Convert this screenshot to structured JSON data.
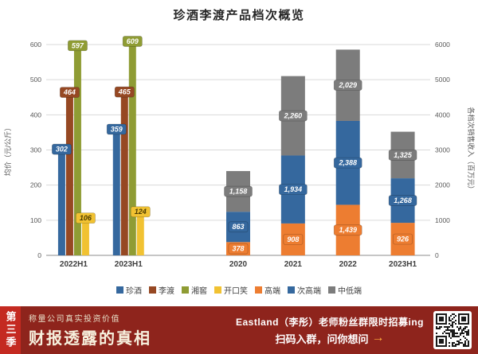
{
  "title": "珍酒李渡产品档次概览",
  "chart_data": {
    "type": "bar",
    "title": "珍酒李渡产品档次概览",
    "left_axis": {
      "label": "均价（元/公斤）",
      "min": 0,
      "max": 600,
      "ticks": [
        0,
        100,
        200,
        300,
        400,
        500,
        600
      ]
    },
    "right_axis": {
      "label": "各档次销售收入（百万元）",
      "min": 0,
      "max": 6000,
      "ticks": [
        0,
        1000,
        2000,
        3000,
        4000,
        5000,
        6000
      ]
    },
    "price_chart": {
      "categories": [
        "2022H1",
        "2023H1"
      ],
      "series": [
        {
          "name": "珍酒",
          "color": "#35689E",
          "label_text": "#FFFFFF",
          "values": [
            302,
            359
          ]
        },
        {
          "name": "李渡",
          "color": "#964823",
          "label_text": "#FFFFFF",
          "values": [
            464,
            465
          ]
        },
        {
          "name": "湘窖",
          "color": "#8F9C34",
          "label_text": "#FFFFFF",
          "values": [
            597,
            609
          ]
        },
        {
          "name": "开口笑",
          "color": "#F1C232",
          "label_text": "#4A3B00",
          "values": [
            106,
            124
          ]
        }
      ]
    },
    "revenue_chart": {
      "categories": [
        "2020",
        "2021",
        "2022",
        "2023H1"
      ],
      "series": [
        {
          "name": "高端",
          "color": "#ED7D31",
          "label_text": "#FFFFFF",
          "values": [
            378,
            908,
            1439,
            926
          ]
        },
        {
          "name": "次高端",
          "color": "#35689E",
          "label_text": "#FFFFFF",
          "values": [
            863,
            1934,
            2388,
            1268
          ]
        },
        {
          "name": "中低端",
          "color": "#7C7C7C",
          "label_text": "#FFFFFF",
          "values": [
            1158,
            2260,
            2029,
            1325
          ]
        }
      ]
    },
    "legend": [
      {
        "label": "珍酒",
        "color": "#35689E"
      },
      {
        "label": "李渡",
        "color": "#964823"
      },
      {
        "label": "湘窖",
        "color": "#8F9C34"
      },
      {
        "label": "开口笑",
        "color": "#F1C232"
      },
      {
        "label": "高端",
        "color": "#ED7D31"
      },
      {
        "label": "次高端",
        "color": "#35689E"
      },
      {
        "label": "中低端",
        "color": "#7C7C7C"
      }
    ]
  },
  "footer": {
    "season_tag": "第三季",
    "tagline_small": "称量公司真实投资价值",
    "tagline_big": "财报透露的真相",
    "promo_line1": "Eastland（李彤）老师粉丝群限时招募ing",
    "promo_line2": "扫码入群，问你想问",
    "arrow": "→",
    "colors": {
      "background": "#8E241C",
      "tab": "#C42A21",
      "tagline_small_text": "#E8DFC8",
      "tagline_big_text": "#F7F1DE",
      "promo_text": "#FFFFFF",
      "arrow_accent": "#FFAE3B"
    }
  }
}
